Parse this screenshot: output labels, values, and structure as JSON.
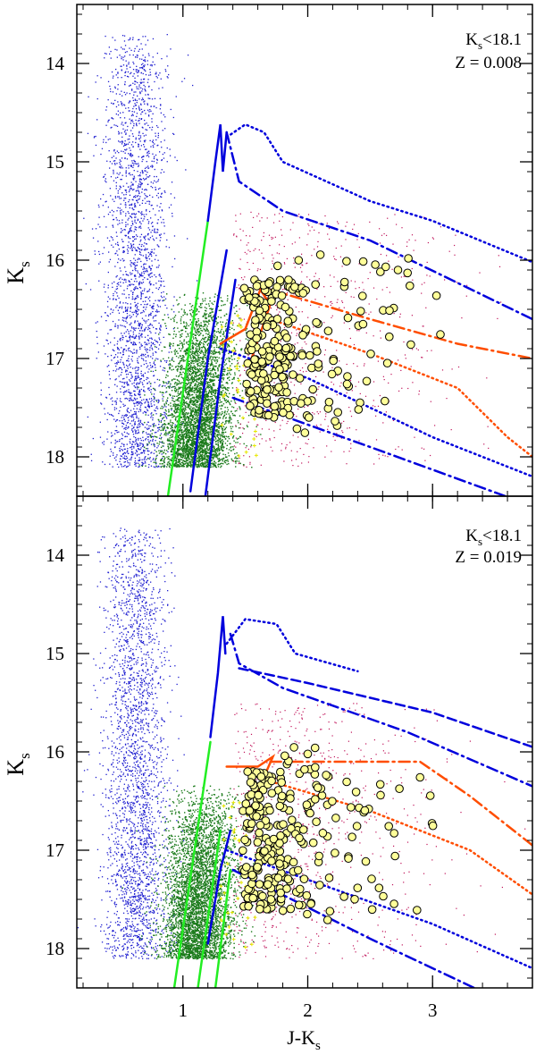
{
  "chart_data": [
    {
      "type": "scatter",
      "panel": "top",
      "annotation": {
        "cut_main": "K",
        "cut_sub": "s",
        "cut_rest": "<18.1",
        "metallicity": "Z = 0.008"
      },
      "ylabel": {
        "main": "K",
        "sub": "s"
      },
      "xlim": [
        0.15,
        3.8
      ],
      "ylim": [
        18.4,
        13.4
      ],
      "yticks": [
        14,
        15,
        16,
        17,
        18
      ],
      "ytick_labels": [
        "14",
        "15",
        "16",
        "17",
        "18"
      ],
      "colors": {
        "field_blue": "#1f1fd0",
        "field_green": "#1a7a1a",
        "field_red": "#c0135a",
        "rgb_fill": "#ffff99",
        "iso_blue": "#0000dd",
        "iso_green": "#22ee22",
        "iso_orange": "#ff4d00",
        "plus_yellow": "#e8e800"
      },
      "lines": [
        {
          "name": "green-isochrone",
          "color": "#22ee22",
          "style": "solid",
          "points": [
            [
              0.88,
              18.4
            ],
            [
              1.2,
              15.6
            ]
          ]
        },
        {
          "name": "blue-rgb-main",
          "color": "#0000dd",
          "style": "solid",
          "points": [
            [
              1.2,
              15.6
            ],
            [
              1.26,
              15.0
            ],
            [
              1.3,
              14.62
            ],
            [
              1.32,
              15.1
            ],
            [
              1.35,
              14.7
            ]
          ]
        },
        {
          "name": "blue-lower-1",
          "color": "#0000dd",
          "style": "solid",
          "points": [
            [
              1.06,
              18.35
            ],
            [
              1.2,
              17.0
            ],
            [
              1.35,
              15.9
            ]
          ]
        },
        {
          "name": "blue-lower-2",
          "color": "#0000dd",
          "style": "solid",
          "points": [
            [
              1.18,
              18.4
            ],
            [
              1.3,
              17.2
            ],
            [
              1.42,
              16.2
            ]
          ]
        },
        {
          "name": "blue-agb-dotted",
          "color": "#0000dd",
          "style": "dotted",
          "points": [
            [
              1.35,
              14.75
            ],
            [
              1.5,
              14.62
            ],
            [
              1.65,
              14.7
            ],
            [
              1.8,
              15.0
            ],
            [
              2.5,
              15.4
            ],
            [
              3.0,
              15.6
            ],
            [
              3.8,
              16.02
            ]
          ]
        },
        {
          "name": "blue-agb-dashdot",
          "color": "#0000dd",
          "style": "dashdot",
          "points": [
            [
              1.35,
              14.7
            ],
            [
              1.45,
              15.2
            ],
            [
              1.8,
              15.5
            ],
            [
              2.5,
              15.8
            ],
            [
              3.8,
              16.6
            ]
          ]
        },
        {
          "name": "blue-faint-dashdot",
          "color": "#0000dd",
          "style": "dashdot",
          "points": [
            [
              1.4,
              17.4
            ],
            [
              2.5,
              17.9
            ],
            [
              3.8,
              18.5
            ]
          ]
        },
        {
          "name": "blue-faint-dotted",
          "color": "#0000dd",
          "style": "dotted",
          "points": [
            [
              1.3,
              16.9
            ],
            [
              2.0,
              17.2
            ],
            [
              3.0,
              17.8
            ],
            [
              3.8,
              18.2
            ]
          ]
        },
        {
          "name": "orange-rgb",
          "color": "#ff4d00",
          "style": "solid",
          "points": [
            [
              1.3,
              16.85
            ],
            [
              1.5,
              16.7
            ],
            [
              1.62,
              16.3
            ],
            [
              1.7,
              16.45
            ],
            [
              1.55,
              17.0
            ]
          ]
        },
        {
          "name": "orange-dashdot",
          "color": "#ff4d00",
          "style": "dashdot",
          "points": [
            [
              1.7,
              16.3
            ],
            [
              2.5,
              16.6
            ],
            [
              3.2,
              16.85
            ],
            [
              3.8,
              17.0
            ]
          ]
        },
        {
          "name": "orange-dotted",
          "color": "#ff4d00",
          "style": "dotted",
          "points": [
            [
              1.7,
              16.6
            ],
            [
              2.5,
              16.95
            ],
            [
              3.2,
              17.3
            ],
            [
              3.6,
              17.8
            ],
            [
              3.8,
              18.0
            ]
          ]
        }
      ]
    },
    {
      "type": "scatter",
      "panel": "bottom",
      "annotation": {
        "cut_main": "K",
        "cut_sub": "s",
        "cut_rest": "<18.1",
        "metallicity": "Z = 0.019"
      },
      "ylabel": {
        "main": "K",
        "sub": "s"
      },
      "xlabel": {
        "main": "J-K",
        "sub": "s"
      },
      "xlim": [
        0.15,
        3.8
      ],
      "ylim": [
        18.4,
        13.4
      ],
      "xticks": [
        1,
        2,
        3
      ],
      "xtick_labels": [
        "1",
        "2",
        "3"
      ],
      "yticks": [
        14,
        15,
        16,
        17,
        18
      ],
      "ytick_labels": [
        "14",
        "15",
        "16",
        "17",
        "18"
      ],
      "lines": [
        {
          "name": "green-isochrone-1",
          "color": "#22ee22",
          "style": "solid",
          "points": [
            [
              0.93,
              18.4
            ],
            [
              1.22,
              15.9
            ]
          ]
        },
        {
          "name": "green-isochrone-2",
          "color": "#22ee22",
          "style": "solid",
          "points": [
            [
              1.12,
              18.4
            ],
            [
              1.3,
              16.8
            ]
          ]
        },
        {
          "name": "green-isochrone-3",
          "color": "#22ee22",
          "style": "solid",
          "points": [
            [
              1.26,
              18.4
            ],
            [
              1.38,
              17.2
            ]
          ]
        },
        {
          "name": "blue-rgb-main",
          "color": "#0000dd",
          "style": "solid",
          "points": [
            [
              1.22,
              15.85
            ],
            [
              1.28,
              15.2
            ],
            [
              1.32,
              14.62
            ],
            [
              1.34,
              15.0
            ]
          ]
        },
        {
          "name": "blue-lower-1",
          "color": "#0000dd",
          "style": "solid",
          "points": [
            [
              1.2,
              17.95
            ],
            [
              1.3,
              17.2
            ],
            [
              1.38,
              16.8
            ]
          ]
        },
        {
          "name": "blue-agb-dotted",
          "color": "#0000dd",
          "style": "dotted",
          "points": [
            [
              1.35,
              14.9
            ],
            [
              1.5,
              14.65
            ],
            [
              1.75,
              14.7
            ],
            [
              1.9,
              15.0
            ],
            [
              2.4,
              15.18
            ]
          ]
        },
        {
          "name": "blue-agb-dashdot",
          "color": "#0000dd",
          "style": "dashdot",
          "points": [
            [
              1.38,
              14.8
            ],
            [
              1.45,
              15.1
            ],
            [
              1.8,
              15.35
            ],
            [
              2.8,
              15.8
            ],
            [
              3.8,
              16.35
            ]
          ]
        },
        {
          "name": "blue-agb-dashed",
          "color": "#0000dd",
          "style": "dashed",
          "points": [
            [
              1.45,
              15.15
            ],
            [
              2.0,
              15.3
            ],
            [
              3.0,
              15.6
            ],
            [
              3.8,
              15.95
            ]
          ]
        },
        {
          "name": "blue-faint-dashdot",
          "color": "#0000dd",
          "style": "dashdot",
          "points": [
            [
              1.4,
              17.2
            ],
            [
              2.5,
              17.9
            ],
            [
              3.5,
              18.5
            ]
          ]
        },
        {
          "name": "blue-faint-dotted",
          "color": "#0000dd",
          "style": "dotted",
          "points": [
            [
              1.35,
              17.0
            ],
            [
              2.0,
              17.3
            ],
            [
              3.0,
              17.75
            ],
            [
              3.8,
              18.2
            ]
          ]
        },
        {
          "name": "orange-rgb",
          "color": "#ff4d00",
          "style": "solid",
          "points": [
            [
              1.35,
              16.15
            ],
            [
              1.6,
              16.15
            ],
            [
              1.72,
              16.05
            ],
            [
              1.6,
              16.4
            ]
          ]
        },
        {
          "name": "orange-dashdot",
          "color": "#ff4d00",
          "style": "dashdot",
          "points": [
            [
              1.7,
              16.1
            ],
            [
              2.5,
              16.1
            ],
            [
              2.9,
              16.1
            ],
            [
              3.3,
              16.45
            ],
            [
              3.8,
              16.95
            ]
          ]
        },
        {
          "name": "orange-dotted",
          "color": "#ff4d00",
          "style": "dotted",
          "points": [
            [
              1.7,
              16.3
            ],
            [
              2.5,
              16.6
            ],
            [
              3.3,
              17.0
            ],
            [
              3.8,
              17.45
            ]
          ]
        }
      ]
    }
  ]
}
